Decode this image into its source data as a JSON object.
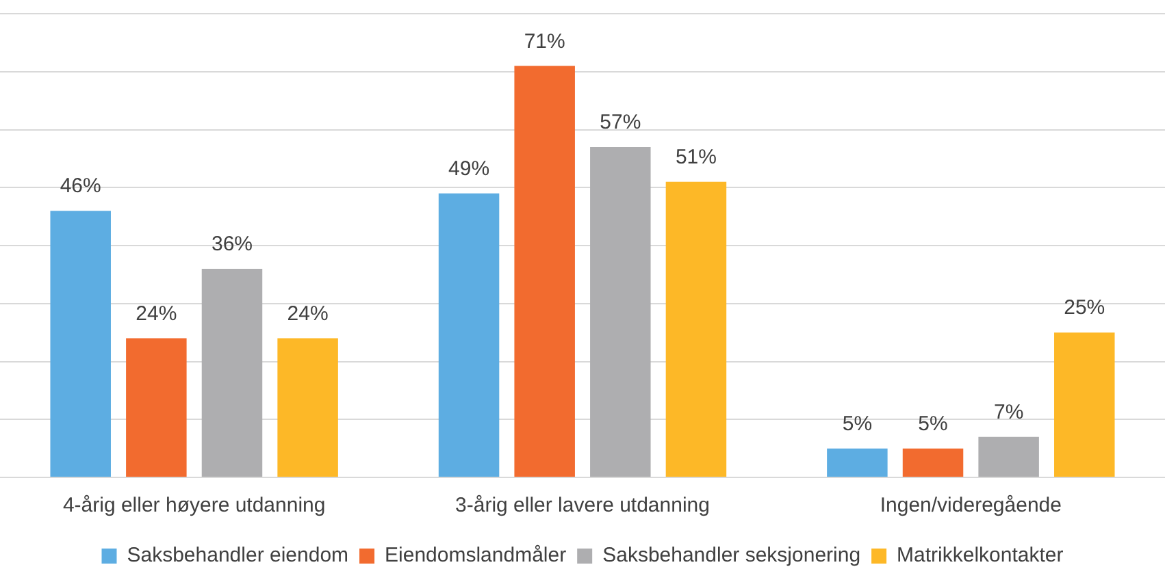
{
  "chart_data": {
    "type": "bar",
    "categories": [
      "4-årig eller høyere utdanning",
      "3-årig eller lavere utdanning",
      "Ingen/videregående"
    ],
    "series": [
      {
        "name": "Saksbehandler eiendom",
        "color": "#5dade2",
        "values": [
          46,
          49,
          5
        ],
        "value_labels": [
          "46%",
          "49%",
          "5%"
        ]
      },
      {
        "name": "Eiendomslandmåler",
        "color": "#f26b2f",
        "values": [
          24,
          71,
          5
        ],
        "value_labels": [
          "24%",
          "71%",
          "5%"
        ]
      },
      {
        "name": "Saksbehandler seksjonering",
        "color": "#aeaeb0",
        "values": [
          36,
          57,
          7
        ],
        "value_labels": [
          "36%",
          "57%",
          "7%"
        ]
      },
      {
        "name": "Matrikkelkontakter",
        "color": "#fdb827",
        "values": [
          24,
          51,
          25
        ],
        "value_labels": [
          "24%",
          "51%",
          "25%"
        ]
      }
    ],
    "tick_labels": "x",
    "grid": "y",
    "legend": "bottom"
  }
}
